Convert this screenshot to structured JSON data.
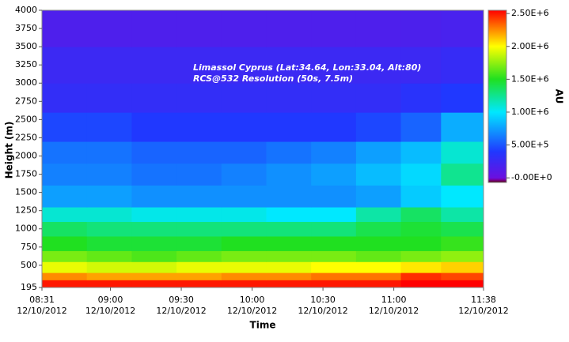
{
  "chart_data": {
    "type": "heatmap",
    "annotations": [
      "Limassol Cyprus (Lat:34.64, Lon:33.04, Alt:80)",
      "RCS@532 Resolution (50s, 7.5m)"
    ],
    "xlabel": "Time",
    "ylabel": "Height (m)",
    "colorbar_label": "AU",
    "x": [
      "08:31",
      "08:50",
      "09:09",
      "09:28",
      "09:47",
      "10:06",
      "10:25",
      "10:44",
      "11:03",
      "11:20",
      "11:38"
    ],
    "y": [
      195,
      300,
      400,
      550,
      700,
      900,
      1100,
      1300,
      1600,
      1900,
      2200,
      2600,
      3000,
      3500,
      4000
    ],
    "values": [
      [
        2500000,
        2500000,
        2500000,
        2500000,
        2500000,
        2500000,
        2500000,
        2500000,
        2550000,
        2550000
      ],
      [
        2250000,
        2200000,
        2200000,
        2200000,
        2250000,
        2250000,
        2300000,
        2300000,
        2450000,
        2400000
      ],
      [
        1950000,
        1900000,
        1900000,
        1950000,
        1950000,
        1950000,
        2000000,
        2000000,
        2050000,
        2100000
      ],
      [
        1700000,
        1650000,
        1600000,
        1650000,
        1700000,
        1700000,
        1700000,
        1650000,
        1700000,
        1750000
      ],
      [
        1500000,
        1450000,
        1450000,
        1450000,
        1500000,
        1500000,
        1500000,
        1500000,
        1500000,
        1550000
      ],
      [
        1350000,
        1300000,
        1300000,
        1300000,
        1300000,
        1300000,
        1300000,
        1400000,
        1450000,
        1400000
      ],
      [
        1100000,
        1100000,
        1050000,
        1050000,
        1050000,
        1000000,
        1000000,
        1200000,
        1350000,
        1200000
      ],
      [
        750000,
        750000,
        700000,
        700000,
        700000,
        700000,
        700000,
        750000,
        900000,
        1000000
      ],
      [
        650000,
        650000,
        600000,
        600000,
        650000,
        700000,
        750000,
        850000,
        950000,
        1250000
      ],
      [
        600000,
        600000,
        550000,
        550000,
        550000,
        600000,
        650000,
        750000,
        850000,
        1100000
      ],
      [
        450000,
        450000,
        400000,
        400000,
        400000,
        400000,
        400000,
        450000,
        550000,
        800000
      ],
      [
        300000,
        300000,
        300000,
        300000,
        300000,
        300000,
        300000,
        300000,
        350000,
        400000
      ],
      [
        250000,
        250000,
        250000,
        250000,
        250000,
        250000,
        250000,
        250000,
        250000,
        280000
      ],
      [
        150000,
        150000,
        150000,
        150000,
        150000,
        150000,
        150000,
        150000,
        160000,
        180000
      ]
    ],
    "xlim": [
      "08:31",
      "11:38"
    ],
    "xticks": [
      {
        "value": "08:31",
        "label": [
          "08:31",
          "12/10/2012"
        ]
      },
      {
        "value": "09:00",
        "label": [
          "09:00",
          "12/10/2012"
        ]
      },
      {
        "value": "09:30",
        "label": [
          "09:30",
          "12/10/2012"
        ]
      },
      {
        "value": "10:00",
        "label": [
          "10:00",
          "12/10/2012"
        ]
      },
      {
        "value": "10:30",
        "label": [
          "10:30",
          "12/10/2012"
        ]
      },
      {
        "value": "11:00",
        "label": [
          "11:00",
          "12/10/2012"
        ]
      },
      {
        "value": "11:38",
        "label": [
          "11:38",
          "12/10/2012"
        ]
      }
    ],
    "ylim": [
      195,
      4000
    ],
    "yticks": [
      195,
      500,
      750,
      1000,
      1250,
      1500,
      1750,
      2000,
      2250,
      2500,
      2750,
      3000,
      3250,
      3500,
      3750,
      4000
    ],
    "clim": [
      -70000,
      2550000
    ],
    "cticks": [
      {
        "value": 0,
        "label": "-0.00E+0"
      },
      {
        "value": 500000,
        "label": "5.00E+5"
      },
      {
        "value": 1000000,
        "label": "1.00E+6"
      },
      {
        "value": 1500000,
        "label": "1.50E+6"
      },
      {
        "value": 2000000,
        "label": "2.00E+6"
      },
      {
        "value": 2500000,
        "label": "2.50E+6"
      }
    ],
    "colormap": [
      {
        "value": -70000,
        "color": "#500000"
      },
      {
        "value": -30000,
        "color": "#7a00a0"
      },
      {
        "value": 0,
        "color": "#6a10e0"
      },
      {
        "value": 400000,
        "color": "#2038ff"
      },
      {
        "value": 1000000,
        "color": "#00e8ff"
      },
      {
        "value": 1500000,
        "color": "#20e020"
      },
      {
        "value": 2000000,
        "color": "#ffff00"
      },
      {
        "value": 2550000,
        "color": "#ff0000"
      }
    ]
  }
}
